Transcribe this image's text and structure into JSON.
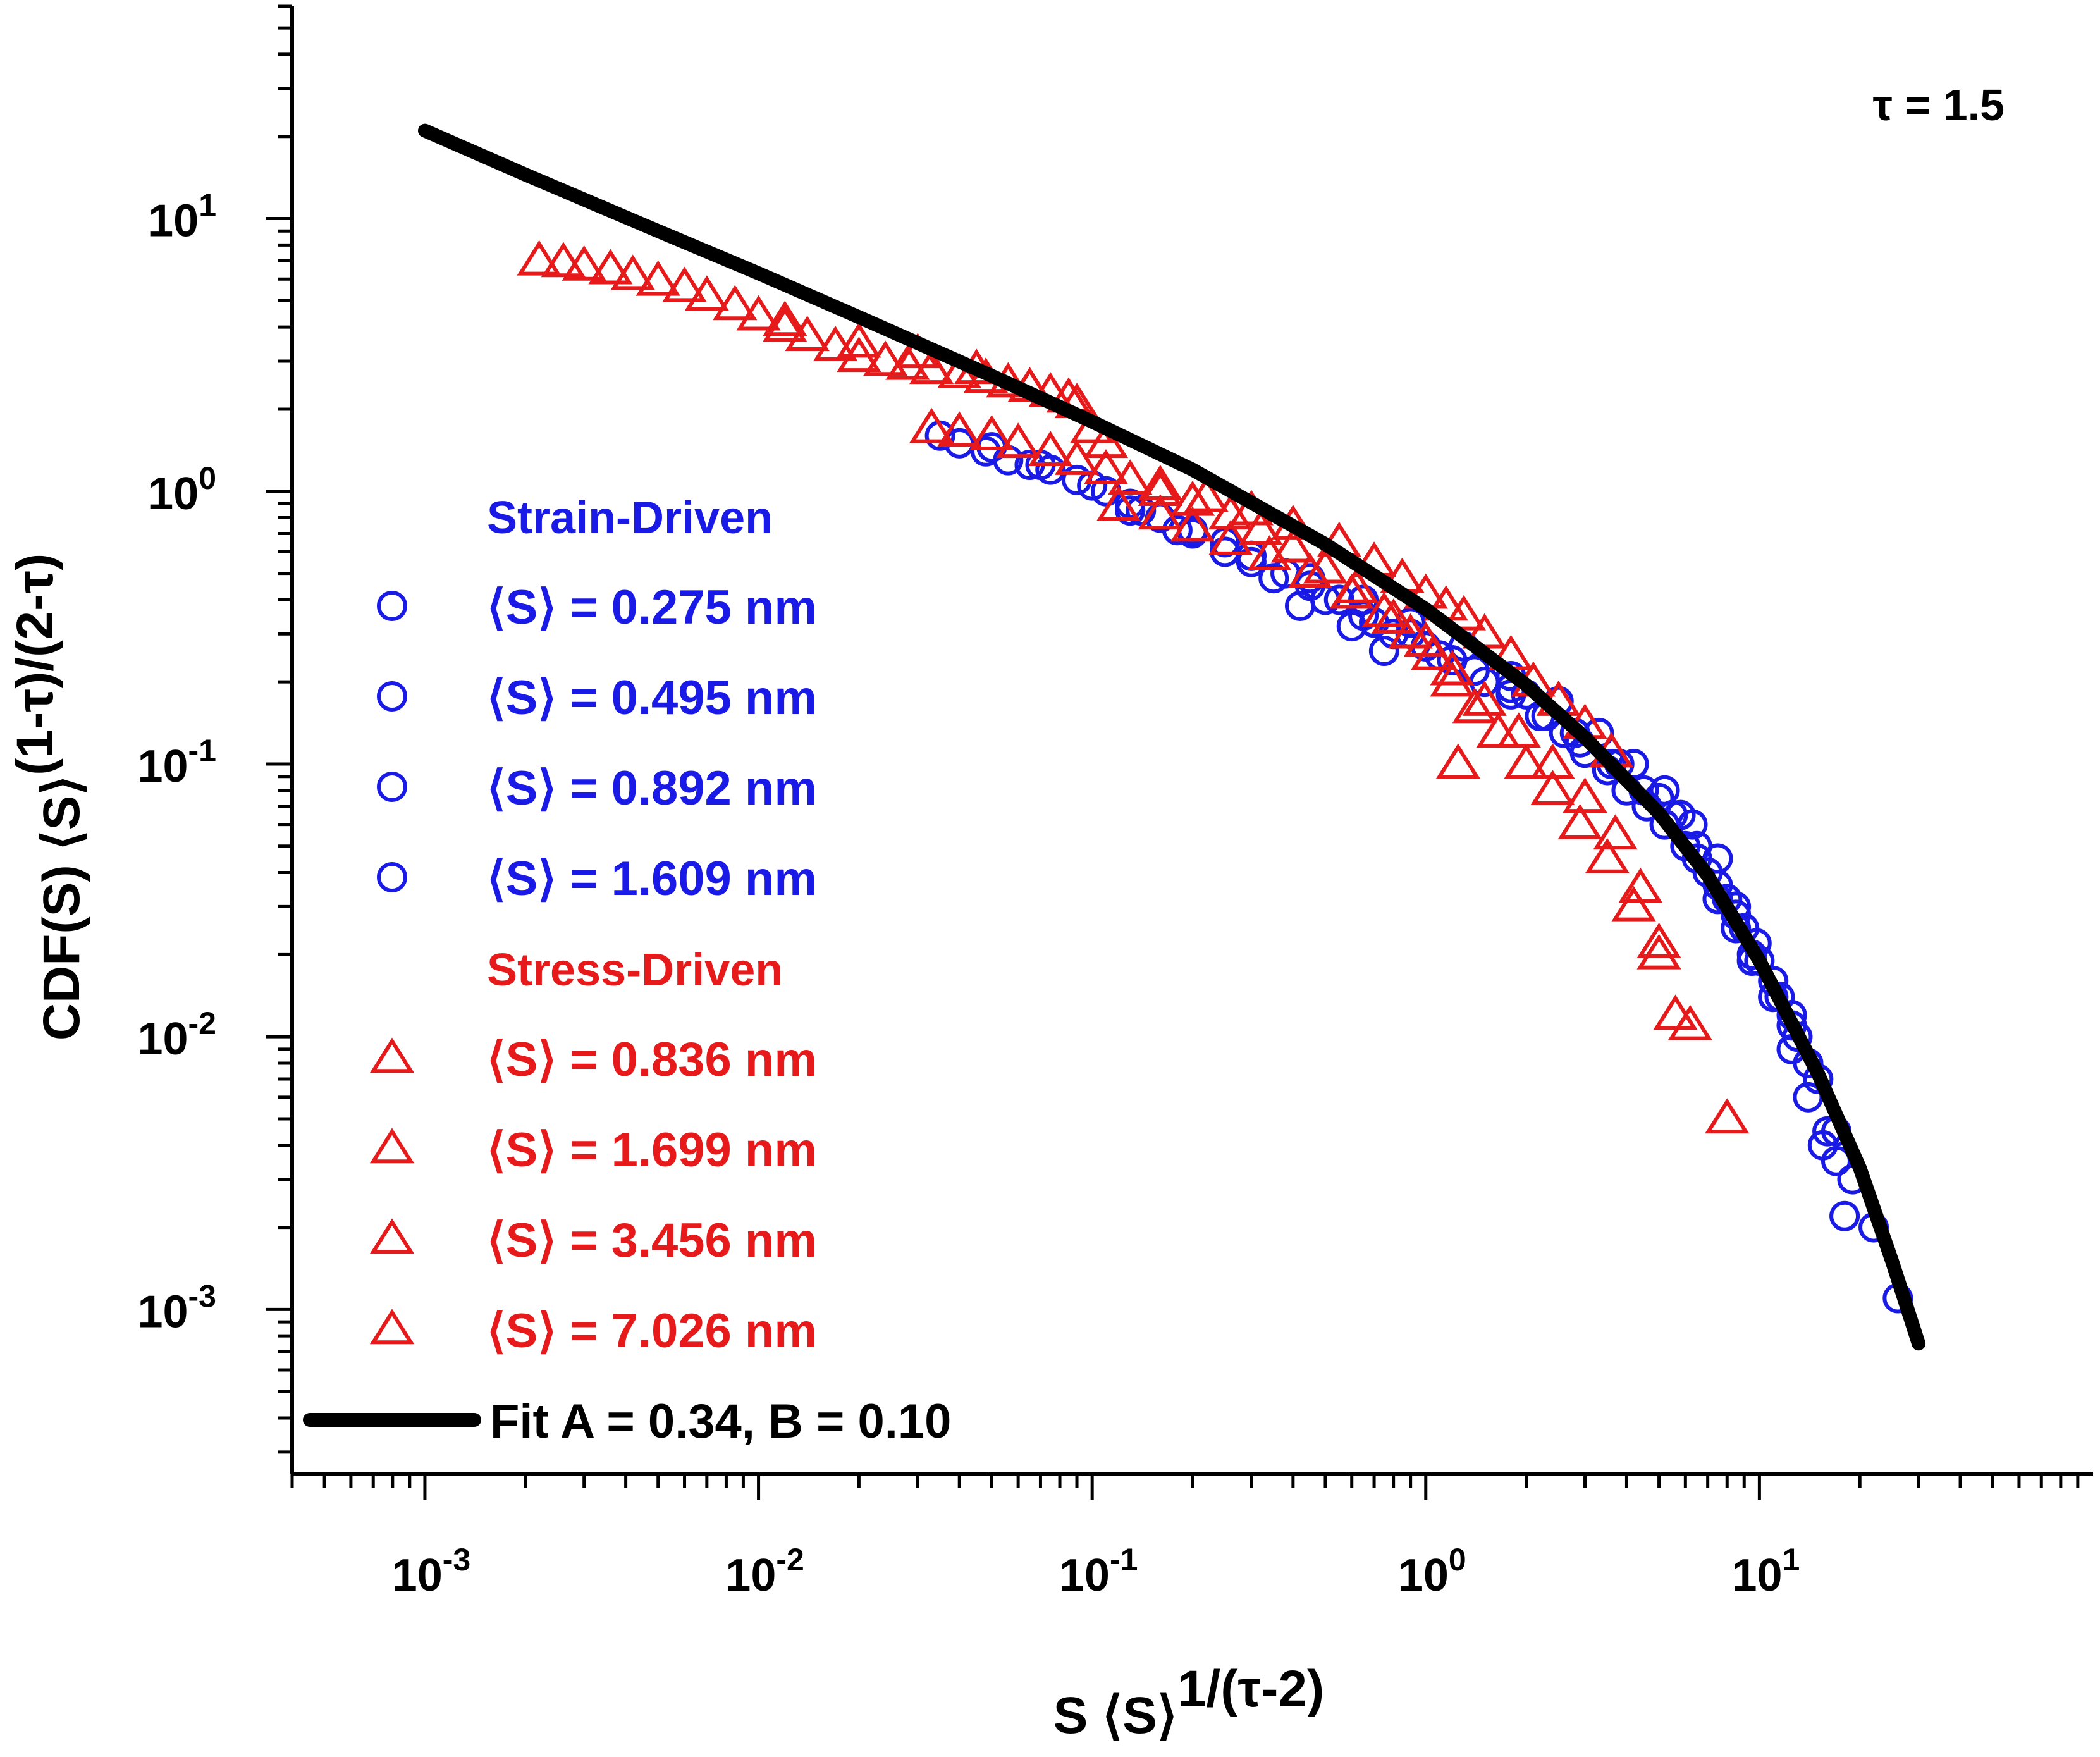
{
  "chart_data": {
    "type": "scatter",
    "title": "",
    "xlabel": {
      "base": "S ⟨S⟩",
      "sup": "1/(τ-2)"
    },
    "ylabel": {
      "base": "CDF(S) ⟨S⟩",
      "sup": "(1-τ)/(2-τ)"
    },
    "xscale": "log",
    "yscale": "log",
    "xlim": [
      0.0004,
      100
    ],
    "ylim": [
      0.00025,
      60
    ],
    "grid": false,
    "legend_position": "left-center",
    "annotation": "τ = 1.5",
    "x_ticks": [
      {
        "value": 0.001,
        "base": "10",
        "exp": "-3"
      },
      {
        "value": 0.01,
        "base": "10",
        "exp": "-2"
      },
      {
        "value": 0.1,
        "base": "10",
        "exp": "-1"
      },
      {
        "value": 1,
        "base": "10",
        "exp": "0"
      },
      {
        "value": 10,
        "base": "10",
        "exp": "1"
      }
    ],
    "y_ticks": [
      {
        "value": 0.001,
        "base": "10",
        "exp": "-3"
      },
      {
        "value": 0.01,
        "base": "10",
        "exp": "-2"
      },
      {
        "value": 0.1,
        "base": "10",
        "exp": "-1"
      },
      {
        "value": 1,
        "base": "10",
        "exp": "0"
      },
      {
        "value": 10,
        "base": "10",
        "exp": "1"
      }
    ],
    "legend": {
      "groups": [
        {
          "title": "Strain-Driven",
          "color": "#1a1ae6",
          "marker": "circle",
          "entries": [
            "⟨S⟩ = 0.275 nm",
            "⟨S⟩ = 0.495 nm",
            "⟨S⟩ = 0.892 nm",
            "⟨S⟩ = 1.609 nm"
          ]
        },
        {
          "title": "Stress-Driven",
          "color": "#e61a1a",
          "marker": "triangle",
          "entries": [
            "⟨S⟩ = 0.836 nm",
            "⟨S⟩ = 1.699 nm",
            "⟨S⟩ = 3.456 nm",
            "⟨S⟩ = 7.026 nm"
          ]
        }
      ],
      "fit_label": "Fit A = 0.34, B = 0.10",
      "fit_color": "#000000"
    },
    "series": [
      {
        "group": "strain",
        "marker": "circle",
        "color": "#1a1ae6",
        "x": [
          0.035,
          0.04,
          0.048,
          0.056,
          0.065,
          0.075,
          0.09,
          0.11,
          0.13,
          0.16,
          0.2,
          0.25,
          0.3,
          0.38,
          0.45,
          0.55,
          0.65,
          0.8,
          1.0,
          1.2,
          1.5,
          1.8,
          2.2,
          2.6,
          3.0,
          3.5,
          4.0,
          4.6,
          5.2,
          6.0,
          7.0,
          8.0,
          9.0,
          10.0,
          11.5,
          13.0,
          15.0,
          17.0,
          19.0,
          22.0,
          26.0
        ],
        "y": [
          1.6,
          1.5,
          1.4,
          1.3,
          1.25,
          1.2,
          1.1,
          1.0,
          0.9,
          0.8,
          0.72,
          0.65,
          0.58,
          0.5,
          0.45,
          0.4,
          0.35,
          0.3,
          0.27,
          0.24,
          0.2,
          0.18,
          0.15,
          0.13,
          0.11,
          0.095,
          0.08,
          0.07,
          0.06,
          0.05,
          0.04,
          0.032,
          0.025,
          0.019,
          0.014,
          0.01,
          0.007,
          0.0045,
          0.003,
          0.002,
          0.0011
        ]
      },
      {
        "group": "strain",
        "marker": "circle",
        "color": "#1a1ae6",
        "x": [
          0.05,
          0.07,
          0.1,
          0.14,
          0.2,
          0.3,
          0.42,
          0.6,
          0.75,
          0.9,
          1.1,
          1.4,
          1.8,
          2.3,
          2.9,
          3.6,
          4.5,
          5.5,
          6.5,
          7.5,
          8.5,
          9.5,
          11.0,
          12.5,
          14.0,
          15.5,
          17.0,
          18.0
        ],
        "y": [
          1.45,
          1.25,
          1.05,
          0.85,
          0.7,
          0.55,
          0.38,
          0.32,
          0.26,
          0.3,
          0.25,
          0.22,
          0.19,
          0.15,
          0.12,
          0.1,
          0.08,
          0.065,
          0.05,
          0.036,
          0.028,
          0.02,
          0.014,
          0.009,
          0.006,
          0.004,
          0.0035,
          0.0022
        ]
      },
      {
        "group": "strain",
        "marker": "circle",
        "color": "#1a1ae6",
        "x": [
          0.13,
          0.18,
          0.25,
          0.35,
          0.5,
          0.7,
          1.0,
          1.4,
          2.0,
          2.8,
          3.8,
          5.0,
          5.8,
          6.5,
          7.5,
          8.5,
          9.5,
          11.0,
          12.5,
          14.0
        ],
        "y": [
          0.85,
          0.72,
          0.6,
          0.48,
          0.4,
          0.33,
          0.27,
          0.22,
          0.18,
          0.13,
          0.1,
          0.075,
          0.065,
          0.045,
          0.032,
          0.025,
          0.019,
          0.014,
          0.011,
          0.008
        ]
      },
      {
        "group": "strain",
        "marker": "circle",
        "color": "#1a1ae6",
        "x": [
          0.3,
          0.45,
          0.65,
          0.9,
          1.3,
          1.8,
          2.5,
          3.3,
          4.2,
          5.2,
          6.3,
          7.5,
          8.5,
          9.8,
          11.0,
          12.5,
          16.0
        ],
        "y": [
          0.58,
          0.48,
          0.4,
          0.33,
          0.27,
          0.21,
          0.17,
          0.13,
          0.1,
          0.08,
          0.06,
          0.045,
          0.03,
          0.022,
          0.016,
          0.012,
          0.0045
        ]
      },
      {
        "group": "stress",
        "marker": "triangle",
        "color": "#e61a1a",
        "x": [
          0.0022,
          0.0026,
          0.003,
          0.0036,
          0.0042,
          0.005,
          0.006,
          0.007,
          0.0085,
          0.01,
          0.012,
          0.014,
          0.017,
          0.02,
          0.024,
          0.028,
          0.033,
          0.04,
          0.048,
          0.056,
          0.065,
          0.075,
          0.085,
          0.1
        ],
        "y": [
          7.0,
          6.9,
          6.7,
          6.5,
          6.2,
          5.9,
          5.6,
          5.2,
          4.8,
          4.4,
          4.0,
          3.7,
          3.4,
          3.1,
          3.0,
          2.9,
          2.8,
          2.7,
          2.6,
          2.5,
          2.4,
          2.3,
          2.2,
          1.7
        ]
      },
      {
        "group": "stress",
        "marker": "triangle",
        "color": "#e61a1a",
        "x": [
          0.012,
          0.02,
          0.03,
          0.045,
          0.065,
          0.09,
          0.11,
          0.16,
          0.22,
          0.3,
          0.4,
          0.55,
          0.7,
          0.85,
          1.0,
          1.15,
          1.3,
          1.5,
          1.8,
          2.1,
          2.5,
          3.0,
          3.6
        ],
        "y": [
          4.2,
          3.5,
          3.2,
          2.8,
          2.4,
          2.1,
          1.5,
          1.05,
          0.95,
          0.85,
          0.75,
          0.65,
          0.55,
          0.48,
          0.42,
          0.38,
          0.35,
          0.3,
          0.25,
          0.2,
          0.17,
          0.14,
          0.11
        ]
      },
      {
        "group": "stress",
        "marker": "triangle",
        "color": "#e61a1a",
        "x": [
          0.033,
          0.04,
          0.05,
          0.06,
          0.075,
          0.09,
          0.11,
          0.13,
          0.16,
          0.2,
          0.26,
          0.32,
          0.4,
          0.5,
          0.62,
          0.75,
          0.9,
          1.05,
          1.2,
          1.4,
          1.65,
          2.0,
          2.4,
          2.9,
          3.5,
          4.2,
          5.0
        ],
        "y": [
          1.7,
          1.65,
          1.6,
          1.5,
          1.4,
          1.3,
          1.2,
          1.1,
          1.0,
          0.92,
          0.82,
          0.72,
          0.62,
          0.52,
          0.44,
          0.36,
          0.3,
          0.25,
          0.2,
          0.16,
          0.13,
          0.1,
          0.08,
          0.06,
          0.045,
          0.03,
          0.02
        ]
      },
      {
        "group": "stress",
        "marker": "triangle",
        "color": "#e61a1a",
        "x": [
          0.12,
          0.16,
          0.2,
          0.26,
          0.34,
          0.45,
          0.6,
          0.8,
          1.0,
          1.2,
          1.5,
          1.9,
          2.4,
          3.0,
          3.7,
          4.4,
          5.0,
          5.6,
          6.2,
          8.0,
          1.25
        ],
        "y": [
          0.88,
          0.82,
          0.74,
          0.66,
          0.58,
          0.5,
          0.42,
          0.34,
          0.28,
          0.22,
          0.17,
          0.13,
          0.1,
          0.075,
          0.055,
          0.035,
          0.022,
          0.012,
          0.011,
          0.005,
          0.1
        ]
      },
      {
        "group": "fit",
        "marker": "line",
        "color": "#000000",
        "x": [
          0.001,
          0.002,
          0.005,
          0.01,
          0.02,
          0.05,
          0.1,
          0.2,
          0.5,
          1.0,
          2.0,
          3.0,
          5.0,
          7.0,
          10.0,
          15.0,
          20.0,
          25.0,
          30.0
        ],
        "y": [
          21.0,
          14.5,
          9.0,
          6.3,
          4.35,
          2.65,
          1.8,
          1.2,
          0.64,
          0.37,
          0.195,
          0.125,
          0.066,
          0.039,
          0.019,
          0.0073,
          0.0033,
          0.0015,
          0.00075
        ]
      }
    ]
  }
}
